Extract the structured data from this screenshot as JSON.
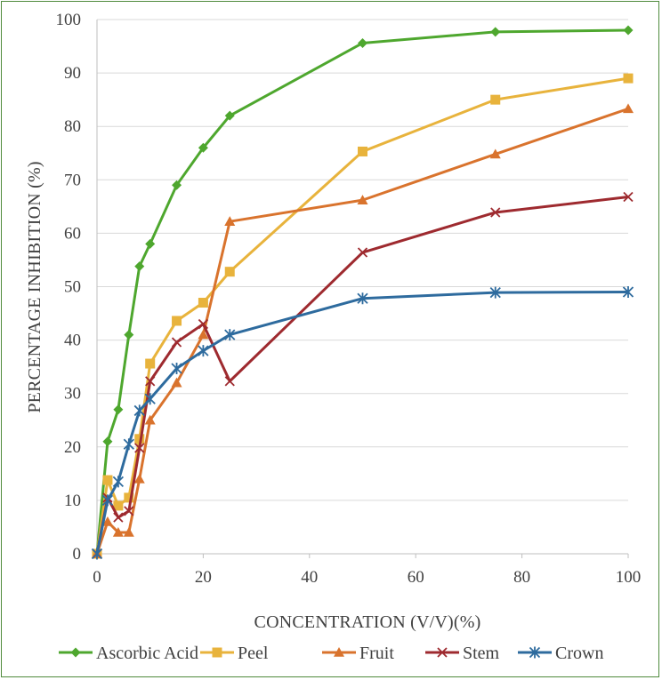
{
  "chart_data": {
    "type": "line",
    "title": "",
    "xlabel": "CONCENTRATION (V/V)(%)",
    "ylabel": "PERCENTAGE INHIBITION (%)",
    "xlim": [
      0,
      100
    ],
    "ylim": [
      0,
      100
    ],
    "xticks": [
      0,
      20,
      40,
      60,
      80,
      100
    ],
    "yticks": [
      0,
      10,
      20,
      30,
      40,
      50,
      60,
      70,
      80,
      90,
      100
    ],
    "grid": "horizontal",
    "legend_position": "bottom",
    "x": [
      0,
      2,
      4,
      6,
      8,
      10,
      15,
      20,
      25,
      50,
      75,
      100
    ],
    "series": [
      {
        "name": "Ascorbic Acid",
        "color": "#4ea72e",
        "marker": "diamond",
        "values": [
          0,
          21,
          27,
          41,
          53.8,
          58,
          69,
          76,
          82,
          95.6,
          97.7,
          98
        ]
      },
      {
        "name": "Peel",
        "color": "#e8b33c",
        "marker": "square",
        "values": [
          0,
          13.8,
          9,
          10.5,
          21.5,
          35.6,
          43.6,
          47,
          52.8,
          75.3,
          85,
          89
        ]
      },
      {
        "name": "Fruit",
        "color": "#d9732d",
        "marker": "triangle",
        "values": [
          0,
          6,
          4,
          4,
          14,
          25,
          32,
          41,
          62.2,
          66.2,
          74.8,
          83.3
        ]
      },
      {
        "name": "Stem",
        "color": "#9e2a2f",
        "marker": "x",
        "values": [
          0,
          10.5,
          6.8,
          8,
          19.8,
          32.3,
          39.6,
          43,
          32.3,
          56.4,
          63.9,
          66.8
        ]
      },
      {
        "name": "Crown",
        "color": "#2e6b9e",
        "marker": "star",
        "values": [
          0,
          10,
          13.5,
          20.5,
          26.8,
          29,
          34.7,
          38,
          41,
          47.8,
          48.9,
          49
        ]
      }
    ]
  }
}
